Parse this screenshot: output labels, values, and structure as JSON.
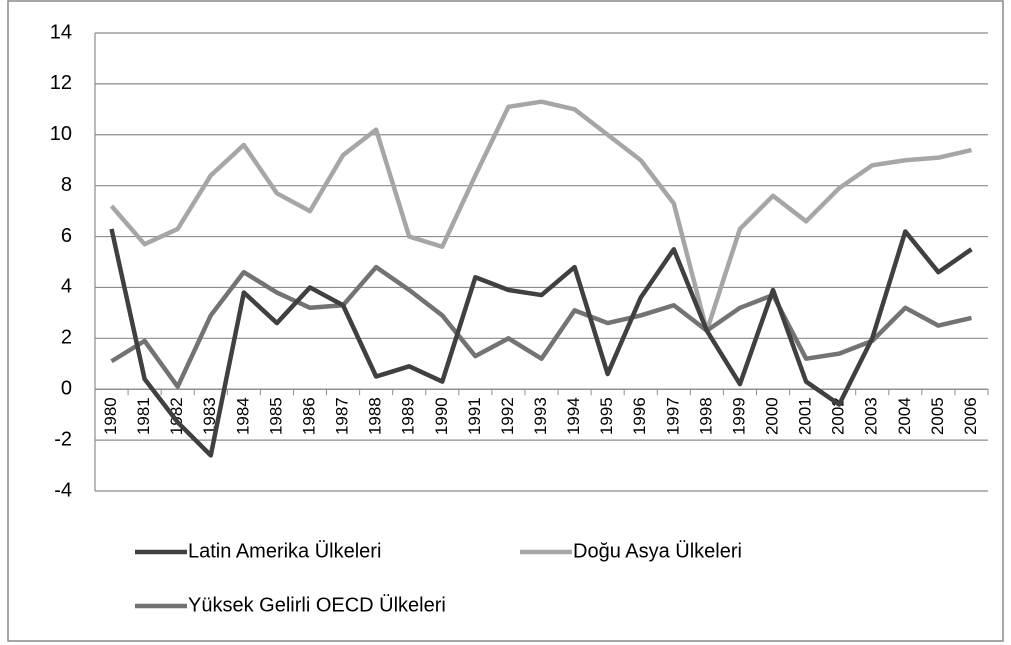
{
  "chart_data": {
    "type": "line",
    "categories": [
      "1980",
      "1981",
      "1982",
      "1983",
      "1984",
      "1985",
      "1986",
      "1987",
      "1988",
      "1989",
      "1990",
      "1991",
      "1992",
      "1993",
      "1994",
      "1995",
      "1996",
      "1997",
      "1998",
      "1999",
      "2000",
      "2001",
      "2002",
      "2003",
      "2004",
      "2005",
      "2006"
    ],
    "series": [
      {
        "name": "Latin Amerika Ülkeleri",
        "color": "#404040",
        "values": [
          6.3,
          0.4,
          -1.3,
          -2.6,
          3.8,
          2.6,
          4.0,
          3.3,
          0.5,
          0.9,
          0.3,
          4.4,
          3.9,
          3.7,
          4.8,
          0.6,
          3.6,
          5.5,
          2.3,
          0.2,
          3.9,
          0.3,
          -0.6,
          2.0,
          6.2,
          4.6,
          5.5
        ]
      },
      {
        "name": "Doğu Asya Ülkeleri",
        "color": "#a6a6a6",
        "values": [
          7.2,
          5.7,
          6.3,
          8.4,
          9.6,
          7.7,
          7.0,
          9.2,
          10.2,
          6.0,
          5.6,
          8.4,
          11.1,
          11.3,
          11.0,
          10.0,
          9.0,
          7.3,
          2.3,
          6.3,
          7.6,
          6.6,
          7.9,
          8.8,
          9.0,
          9.1,
          9.4
        ]
      },
      {
        "name": "Yüksek Gelirli OECD Ülkeleri",
        "color": "#737373",
        "values": [
          1.1,
          1.9,
          0.1,
          2.9,
          4.6,
          3.8,
          3.2,
          3.3,
          4.8,
          3.9,
          2.9,
          1.3,
          2.0,
          1.2,
          3.1,
          2.6,
          2.9,
          3.3,
          2.3,
          3.2,
          3.7,
          1.2,
          1.4,
          1.9,
          3.2,
          2.5,
          2.8
        ]
      }
    ],
    "ylim": [
      -4,
      14
    ],
    "yticks": [
      -4,
      -2,
      0,
      2,
      4,
      6,
      8,
      10,
      12,
      14
    ],
    "grid": true
  }
}
